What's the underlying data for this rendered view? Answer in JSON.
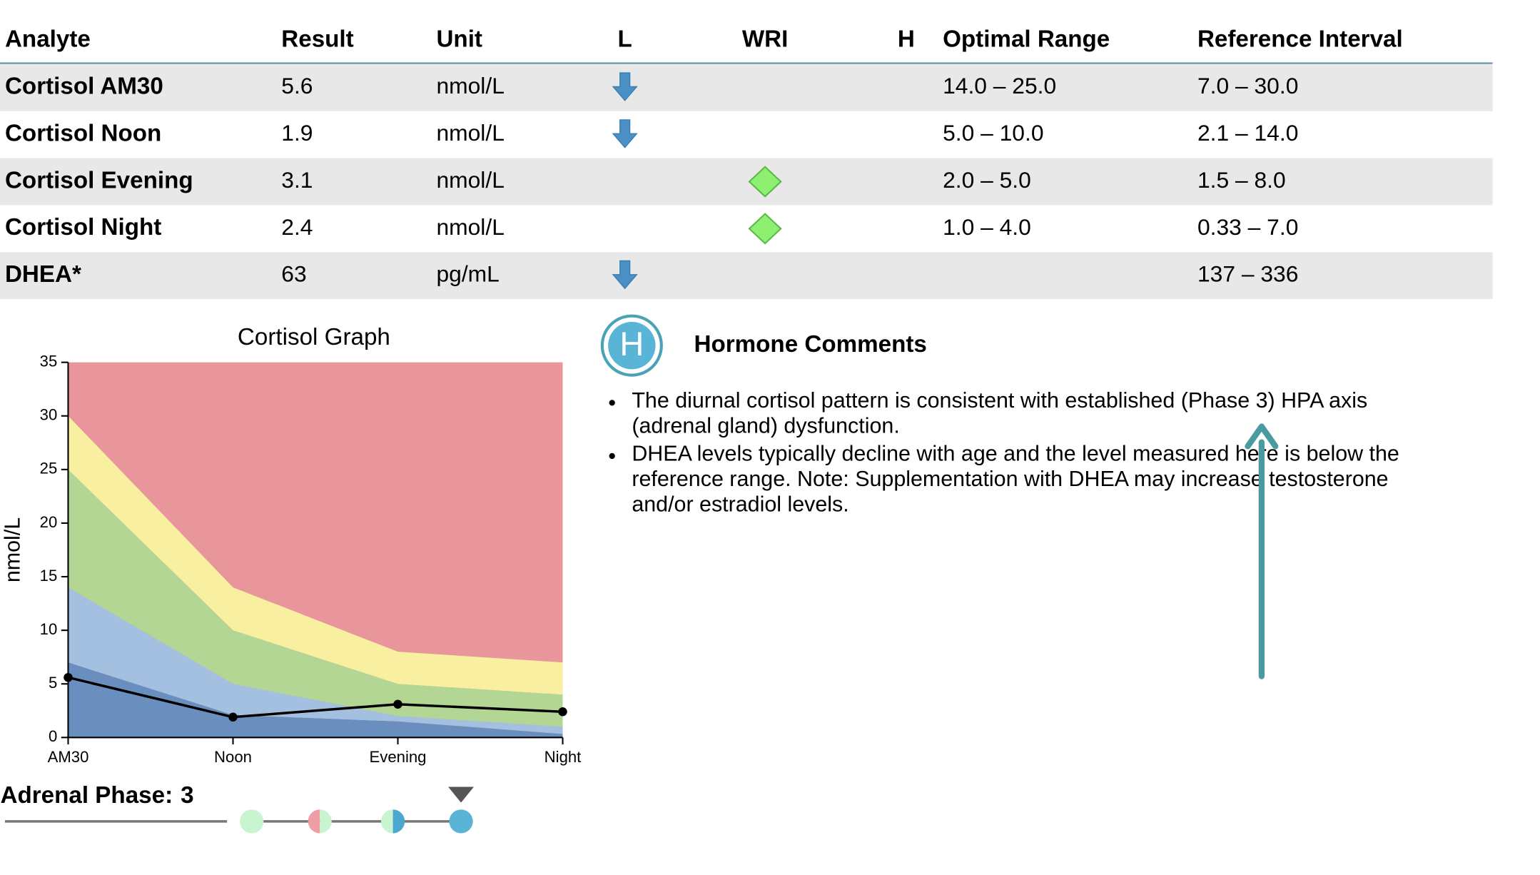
{
  "table": {
    "headers": [
      "Analyte",
      "Result",
      "Unit",
      "L",
      "WRI",
      "H",
      "Optimal Range",
      "Reference Interval"
    ],
    "rows": [
      {
        "analyte": "Cortisol AM30",
        "result": "5.6",
        "unit": "nmol/L",
        "flag": "L",
        "optimal": "14.0 – 25.0",
        "reference": "7.0 – 30.0"
      },
      {
        "analyte": "Cortisol Noon",
        "result": "1.9",
        "unit": "nmol/L",
        "flag": "L",
        "optimal": "5.0 – 10.0",
        "reference": "2.1 – 14.0"
      },
      {
        "analyte": "Cortisol Evening",
        "result": "3.1",
        "unit": "nmol/L",
        "flag": "WRI",
        "optimal": "2.0 – 5.0",
        "reference": "1.5 – 8.0"
      },
      {
        "analyte": "Cortisol Night",
        "result": "2.4",
        "unit": "nmol/L",
        "flag": "WRI",
        "optimal": "1.0 – 4.0",
        "reference": "0.33 – 7.0"
      },
      {
        "analyte": "DHEA*",
        "result": "63",
        "unit": "pg/mL",
        "flag": "L",
        "reference": "137 – 336"
      }
    ]
  },
  "chart_data": {
    "type": "line",
    "title": "Cortisol Graph",
    "y_label": "nmol/L",
    "categories": [
      "AM30",
      "Noon",
      "Evening",
      "Night"
    ],
    "ylim": [
      0,
      35
    ],
    "yticks": [
      0,
      5,
      10,
      15,
      20,
      25,
      30,
      35
    ],
    "background": "#e8969b",
    "bands": [
      {
        "color": "#6a8fbf",
        "values": [
          7.0,
          2.1,
          1.5,
          0.33
        ]
      },
      {
        "color": "#a3c0e0",
        "values": [
          14.0,
          5.0,
          2.0,
          1.0
        ]
      },
      {
        "color": "#b3d695",
        "values": [
          25.0,
          10.0,
          5.0,
          4.0
        ]
      },
      {
        "color": "#f8f0a0",
        "values": [
          30.0,
          14.0,
          8.0,
          7.0
        ]
      }
    ],
    "series": [
      {
        "color": "#000000",
        "values": [
          5.6,
          1.9,
          3.1,
          2.4
        ]
      }
    ]
  },
  "phase": {
    "label": "Adrenal Phase:",
    "value": 3
  },
  "comments": {
    "title": "Hormone Comments",
    "icon": "H",
    "items": [
      [
        "The diurnal cortisol pattern is consistent with established (Phase 3) HPA axis",
        "(adrenal gland) dysfunction."
      ],
      [
        "DHEA levels typically decline with age and the level measured here is below the",
        "reference range. Note: Supplementation with DHEA may increase testosterone",
        "and/or estradiol levels."
      ]
    ]
  }
}
